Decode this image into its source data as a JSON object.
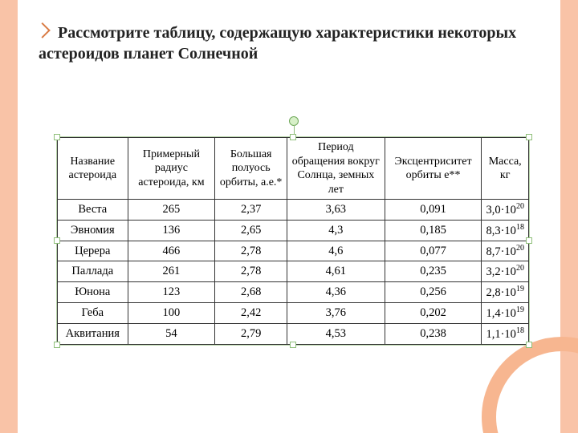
{
  "bullet_text": "Рассмотрите таблицу, содержащую характеристики некоторых астероидов планет Солнечной",
  "accent_color": "#f9c3a7",
  "table": {
    "columns": [
      "Название астероида",
      "Примерный радиус астероида, км",
      "Большая полуось орбиты, а.е.*",
      "Период обращения вокруг Солнца, земных лет",
      "Эксцентриситет орбиты e**",
      "Масса, кг"
    ],
    "rows": [
      {
        "name": "Веста",
        "radius": "265",
        "axis": "2,37",
        "period": "3,63",
        "ecc": "0,091",
        "mass_base": "3,0",
        "mass_exp": "20"
      },
      {
        "name": "Эвномия",
        "radius": "136",
        "axis": "2,65",
        "period": "4,3",
        "ecc": "0,185",
        "mass_base": "8,3",
        "mass_exp": "18"
      },
      {
        "name": "Церера",
        "radius": "466",
        "axis": "2,78",
        "period": "4,6",
        "ecc": "0,077",
        "mass_base": "8,7",
        "mass_exp": "20"
      },
      {
        "name": "Паллада",
        "radius": "261",
        "axis": "2,78",
        "period": "4,61",
        "ecc": "0,235",
        "mass_base": "3,2",
        "mass_exp": "20"
      },
      {
        "name": "Юнона",
        "radius": "123",
        "axis": "2,68",
        "period": "4,36",
        "ecc": "0,256",
        "mass_base": "2,8",
        "mass_exp": "19"
      },
      {
        "name": "Геба",
        "radius": "100",
        "axis": "2,42",
        "period": "3,76",
        "ecc": "0,202",
        "mass_base": "1,4",
        "mass_exp": "19"
      },
      {
        "name": "Аквитания",
        "radius": "54",
        "axis": "2,79",
        "period": "4,53",
        "ecc": "0,238",
        "mass_base": "1,1",
        "mass_exp": "18"
      }
    ]
  }
}
